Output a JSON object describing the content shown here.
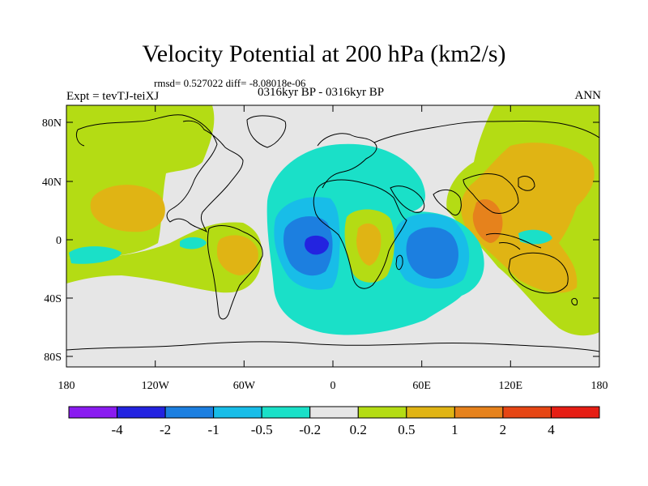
{
  "title": "Velocity Potential at 200 hPa (km2/s)",
  "stats": "rmsd= 0.527022 diff= -8.08018e-06",
  "experiment": "Expt = tevTJ-teiXJ",
  "period": "0316kyr BP - 0316kyr BP",
  "season": "ANN",
  "lat_ticks": [
    "80N",
    "40N",
    "0",
    "40S",
    "80S"
  ],
  "lon_ticks": [
    "180",
    "120W",
    "60W",
    "0",
    "60E",
    "120E",
    "180"
  ],
  "colorbar": {
    "labels": [
      "-4",
      "-2",
      "-1",
      "-0.5",
      "-0.2",
      "0.2",
      "0.5",
      "1",
      "2",
      "4"
    ],
    "colors": [
      "#8a1bf0",
      "#2323e0",
      "#1c7fe0",
      "#18bde8",
      "#1ae0c8",
      "#e6e6e6",
      "#b4dc14",
      "#e0b414",
      "#e6821c",
      "#e64614",
      "#e61e14"
    ]
  },
  "legend_colors": {
    "ocean_neutral": "#e6e6e6",
    "coast": "#000000"
  }
}
